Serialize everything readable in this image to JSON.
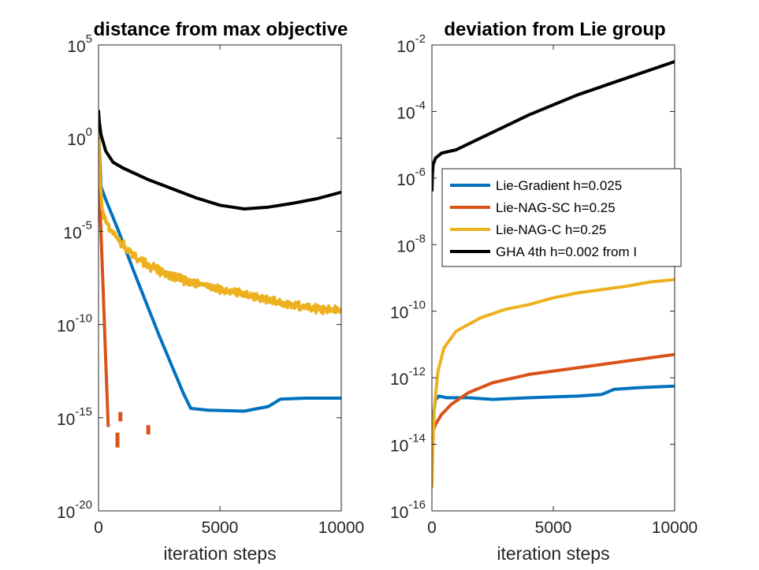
{
  "chart_data": [
    {
      "type": "line",
      "title": "distance from max objective",
      "xlabel": "iteration steps",
      "ylabel": "",
      "yscale": "log",
      "xlim": [
        0,
        10000
      ],
      "ylim_exponent": [
        -20,
        5
      ],
      "x_ticks": [
        "0",
        "5000",
        "10000"
      ],
      "y_ticks": [
        {
          "base": "10",
          "exp": "5"
        },
        {
          "base": "10",
          "exp": "0"
        },
        {
          "base": "10",
          "exp": "-5"
        },
        {
          "base": "10",
          "exp": "-10"
        },
        {
          "base": "10",
          "exp": "-15"
        },
        {
          "base": "10",
          "exp": "-20"
        }
      ],
      "series": [
        {
          "name": "Lie-Gradient h=0.025",
          "color": "#0072BD",
          "points": [
            [
              0,
              0.5
            ],
            [
              100,
              -2.6
            ],
            [
              300,
              -3.3
            ],
            [
              800,
              -4.9
            ],
            [
              1500,
              -7.3
            ],
            [
              2500,
              -10.6
            ],
            [
              3500,
              -13.7
            ],
            [
              3800,
              -14.5
            ],
            [
              4500,
              -14.6
            ],
            [
              6000,
              -14.65
            ],
            [
              7000,
              -14.4
            ],
            [
              7500,
              -14.0
            ],
            [
              8500,
              -13.95
            ],
            [
              10000,
              -13.95
            ]
          ]
        },
        {
          "name": "Lie-NAG-SC h=0.25",
          "color": "#D95319",
          "points": [
            [
              0,
              -2.0
            ],
            [
              100,
              -5.0
            ],
            [
              200,
              -8.5
            ],
            [
              300,
              -12.0
            ],
            [
              400,
              -15.5
            ]
          ],
          "fragments": [
            [
              [
                780,
                -15.8
              ],
              [
                780,
                -16.6
              ]
            ],
            [
              [
                900,
                -14.7
              ],
              [
                900,
                -15.2
              ]
            ],
            [
              [
                2050,
                -15.4
              ],
              [
                2050,
                -15.9
              ]
            ]
          ]
        },
        {
          "name": "Lie-NAG-C h=0.25",
          "color": "#EDB120",
          "points": [
            [
              0,
              1.0
            ],
            [
              50,
              -2.0
            ],
            [
              150,
              -3.8
            ],
            [
              300,
              -4.5
            ],
            [
              600,
              -5.1
            ],
            [
              1000,
              -5.7
            ],
            [
              1500,
              -6.3
            ],
            [
              2000,
              -6.8
            ],
            [
              3000,
              -7.4
            ],
            [
              4000,
              -7.8
            ],
            [
              5000,
              -8.1
            ],
            [
              6000,
              -8.4
            ],
            [
              7000,
              -8.7
            ],
            [
              8000,
              -8.95
            ],
            [
              9000,
              -9.15
            ],
            [
              10000,
              -9.3
            ]
          ],
          "noise": 0.28
        },
        {
          "name": "GHA 4th h=0.002 from I",
          "color": "#000000",
          "points": [
            [
              0,
              1.5
            ],
            [
              30,
              0.9
            ],
            [
              100,
              0.2
            ],
            [
              300,
              -0.7
            ],
            [
              600,
              -1.3
            ],
            [
              1000,
              -1.6
            ],
            [
              2000,
              -2.2
            ],
            [
              3000,
              -2.7
            ],
            [
              4000,
              -3.2
            ],
            [
              5000,
              -3.6
            ],
            [
              6000,
              -3.8
            ],
            [
              7000,
              -3.7
            ],
            [
              8000,
              -3.5
            ],
            [
              9000,
              -3.25
            ],
            [
              10000,
              -2.9
            ]
          ]
        }
      ]
    },
    {
      "type": "line",
      "title": "deviation from Lie group",
      "xlabel": "iteration steps",
      "ylabel": "",
      "yscale": "log",
      "xlim": [
        0,
        10000
      ],
      "ylim_exponent": [
        -16,
        -2
      ],
      "x_ticks": [
        "0",
        "5000",
        "10000"
      ],
      "y_ticks": [
        {
          "base": "10",
          "exp": "-2"
        },
        {
          "base": "10",
          "exp": "-4"
        },
        {
          "base": "10",
          "exp": "-6"
        },
        {
          "base": "10",
          "exp": "-8"
        },
        {
          "base": "10",
          "exp": "-10"
        },
        {
          "base": "10",
          "exp": "-12"
        },
        {
          "base": "10",
          "exp": "-14"
        },
        {
          "base": "10",
          "exp": "-16"
        }
      ],
      "legend": {
        "placement": "center-right",
        "entries": [
          "Lie-Gradient h=0.025",
          "Lie-NAG-SC h=0.25",
          "Lie-NAG-C h=0.25",
          "GHA 4th h=0.002 from I"
        ]
      },
      "series": [
        {
          "name": "Lie-Gradient h=0.025",
          "color": "#0072BD",
          "points": [
            [
              0,
              -14.3
            ],
            [
              50,
              -13.2
            ],
            [
              150,
              -12.65
            ],
            [
              300,
              -12.55
            ],
            [
              600,
              -12.6
            ],
            [
              1500,
              -12.6
            ],
            [
              2500,
              -12.65
            ],
            [
              4000,
              -12.6
            ],
            [
              6000,
              -12.55
            ],
            [
              7000,
              -12.5
            ],
            [
              7500,
              -12.35
            ],
            [
              8500,
              -12.3
            ],
            [
              10000,
              -12.25
            ]
          ]
        },
        {
          "name": "Lie-NAG-SC h=0.25",
          "color": "#D95319",
          "points": [
            [
              0,
              -15.0
            ],
            [
              50,
              -13.6
            ],
            [
              150,
              -13.4
            ],
            [
              400,
              -13.1
            ],
            [
              800,
              -12.8
            ],
            [
              1500,
              -12.45
            ],
            [
              2500,
              -12.15
            ],
            [
              4000,
              -11.9
            ],
            [
              6000,
              -11.7
            ],
            [
              8000,
              -11.5
            ],
            [
              10000,
              -11.3
            ]
          ]
        },
        {
          "name": "Lie-NAG-C h=0.25",
          "color": "#EDB120",
          "points": [
            [
              0,
              -15.3
            ],
            [
              30,
              -14.3
            ],
            [
              100,
              -12.9
            ],
            [
              250,
              -11.8
            ],
            [
              500,
              -11.1
            ],
            [
              1000,
              -10.6
            ],
            [
              2000,
              -10.2
            ],
            [
              3000,
              -9.95
            ],
            [
              4000,
              -9.8
            ],
            [
              5000,
              -9.6
            ],
            [
              6000,
              -9.45
            ],
            [
              7000,
              -9.35
            ],
            [
              8000,
              -9.25
            ],
            [
              9000,
              -9.12
            ],
            [
              10000,
              -9.05
            ]
          ]
        },
        {
          "name": "GHA 4th h=0.002 from I",
          "color": "#000000",
          "points": [
            [
              0,
              -6.4
            ],
            [
              20,
              -5.9
            ],
            [
              50,
              -5.6
            ],
            [
              150,
              -5.4
            ],
            [
              400,
              -5.25
            ],
            [
              1000,
              -5.15
            ],
            [
              2000,
              -4.8
            ],
            [
              4000,
              -4.1
            ],
            [
              6000,
              -3.5
            ],
            [
              8000,
              -3.0
            ],
            [
              10000,
              -2.5
            ]
          ]
        }
      ]
    }
  ]
}
